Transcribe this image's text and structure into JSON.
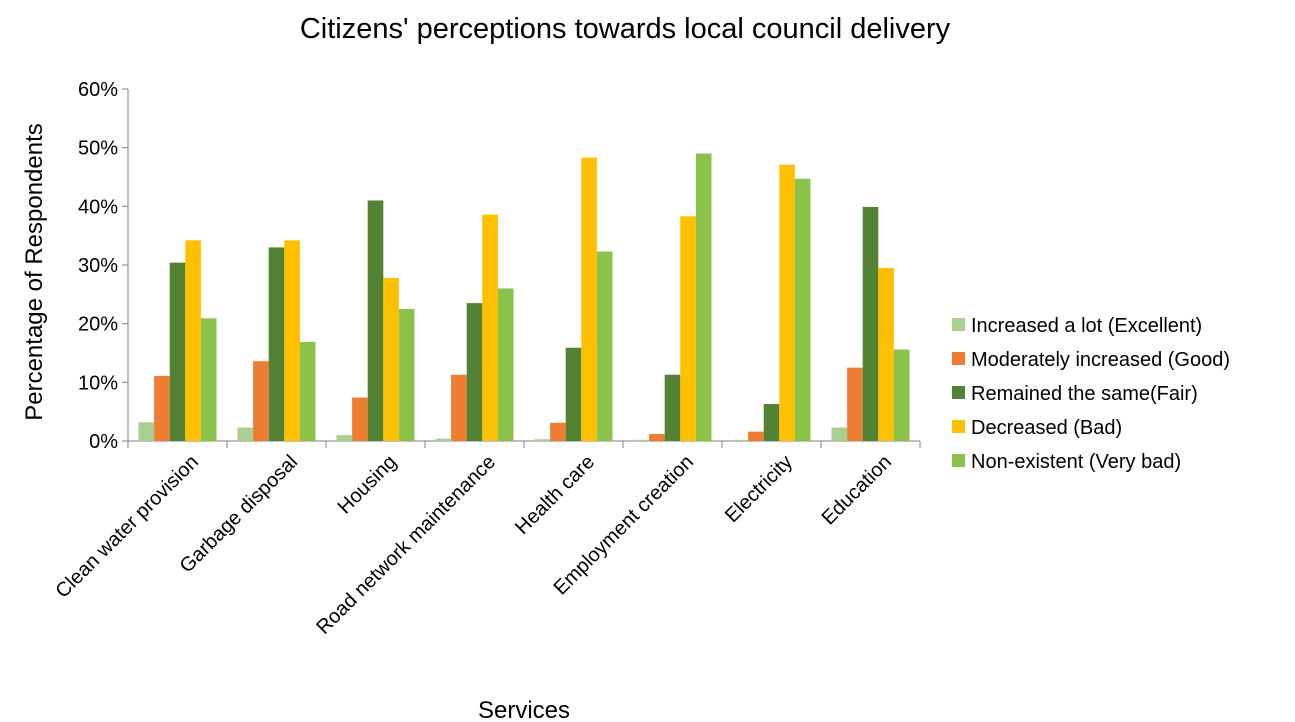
{
  "chart_data": {
    "type": "bar",
    "title": "Citizens' perceptions towards local council delivery",
    "xlabel": "Services",
    "ylabel": "Percentage of Respondents",
    "ylim": [
      0,
      60
    ],
    "yticks": [
      "0%",
      "10%",
      "20%",
      "30%",
      "40%",
      "50%",
      "60%"
    ],
    "grid": false,
    "legend_position": "right",
    "categories": [
      "Clean water provision",
      "Garbage disposal",
      "Housing",
      "Road network maintenance",
      "Health care",
      "Employment creation",
      "Electricity",
      "Education"
    ],
    "series": [
      {
        "name": "Increased a lot (Excellent)",
        "color": "#a9d08e",
        "values": [
          3.2,
          2.3,
          1.0,
          0.4,
          0.3,
          0.2,
          0.2,
          2.3
        ]
      },
      {
        "name": "Moderately increased (Good)",
        "color": "#ed7d31",
        "values": [
          11.1,
          13.6,
          7.4,
          11.3,
          3.1,
          1.2,
          1.6,
          12.5
        ]
      },
      {
        "name": "Remained the same(Fair)",
        "color": "#548235",
        "values": [
          30.4,
          33.0,
          41.0,
          23.5,
          15.9,
          11.3,
          6.3,
          39.9
        ]
      },
      {
        "name": "Decreased (Bad)",
        "color": "#ffc000",
        "values": [
          34.2,
          34.2,
          27.8,
          38.6,
          48.3,
          38.3,
          47.1,
          29.5
        ]
      },
      {
        "name": "Non-existent (Very bad)",
        "color": "#8bc34a",
        "values": [
          20.9,
          16.9,
          22.5,
          26.0,
          32.3,
          49.0,
          44.7,
          15.6
        ]
      }
    ]
  }
}
